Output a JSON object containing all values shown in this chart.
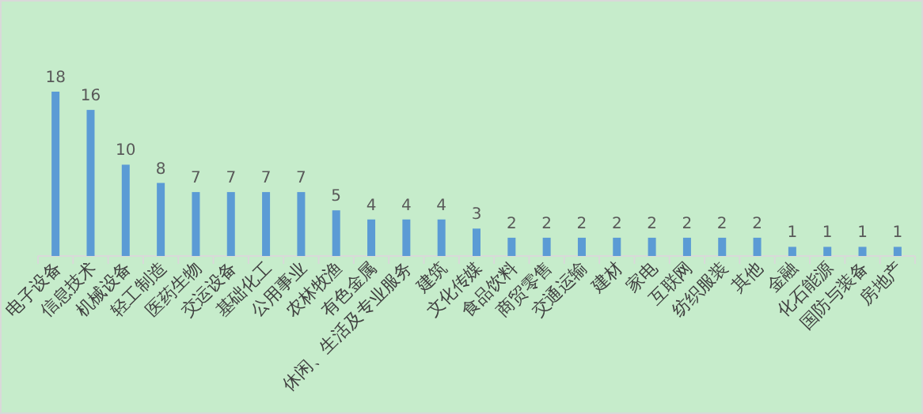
{
  "chart_data": {
    "type": "bar",
    "categories": [
      "电子设备",
      "信息技术",
      "机械设备",
      "轻工制造",
      "医药生物",
      "交运设备",
      "基础化工",
      "公用事业",
      "农林牧渔",
      "有色金属",
      "休闲、生活及专业服务",
      "建筑",
      "文化传媒",
      "食品饮料",
      "商贸零售",
      "交通运输",
      "建材",
      "家电",
      "互联网",
      "纺织服装",
      "其他",
      "金融",
      "化石能源",
      "国防与装备",
      "房地产"
    ],
    "values": [
      18,
      16,
      10,
      8,
      7,
      7,
      7,
      7,
      5,
      4,
      4,
      4,
      3,
      2,
      2,
      2,
      2,
      2,
      2,
      2,
      2,
      1,
      1,
      1,
      1
    ],
    "color": "#5b9bd5",
    "data_labels": true
  }
}
